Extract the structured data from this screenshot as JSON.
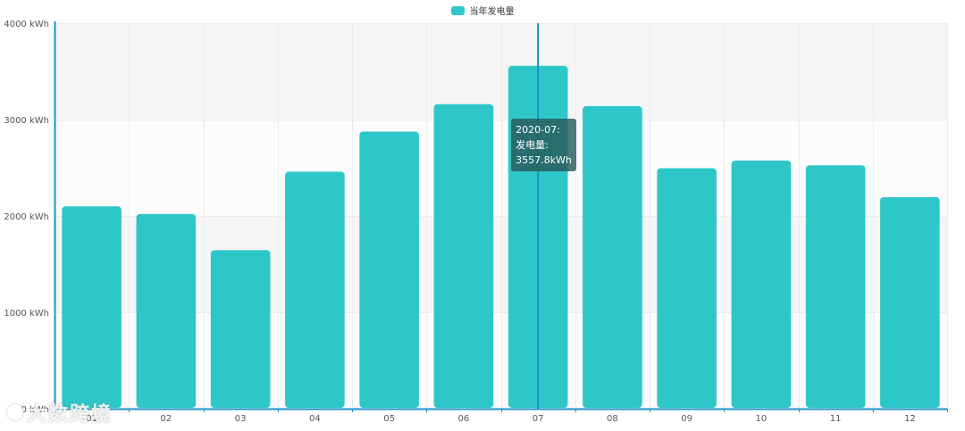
{
  "chart_data": {
    "type": "bar",
    "categories": [
      "01",
      "02",
      "03",
      "04",
      "05",
      "06",
      "07",
      "08",
      "09",
      "10",
      "11",
      "12"
    ],
    "series": [
      {
        "name": "当年发电量",
        "values": [
          2100,
          2020,
          1645,
          2460,
          2875,
          3160,
          3557.8,
          3140,
          2495,
          2575,
          2525,
          2195
        ]
      }
    ],
    "ylim": [
      0,
      4000
    ],
    "y_ticks": [
      "0 kWh",
      "1000 kWh",
      "2000 kWh",
      "3000 kWh",
      "4000 kWh"
    ],
    "legend_position": "top-center",
    "grid": true,
    "tooltip": {
      "category": "07",
      "line1": "2020-07:",
      "line2": "发电量:",
      "line3": "3557.8kWh"
    },
    "colors": {
      "bar": "#2ec7c9",
      "axis": "#1e90c8",
      "grid": "#ececec",
      "band_light": "#fcfcfc",
      "band_dark": "#f6f6f6",
      "pointer": "#1e90c8"
    }
  },
  "watermark": {
    "text": "大数跨境"
  }
}
